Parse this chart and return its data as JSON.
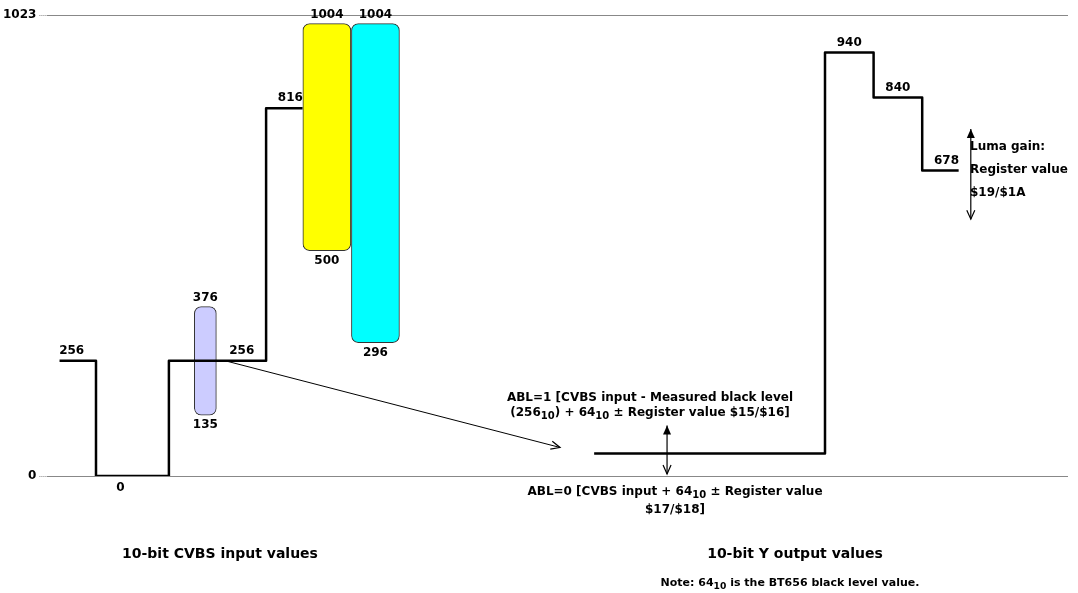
{
  "chart_data": {
    "type": "bar",
    "categories": [
      null,
      null,
      null,
      null,
      null,
      null,
      null,
      null,
      null,
      null,
      null,
      null,
      null,
      null,
      null,
      null,
      null,
      null,
      null,
      null,
      null,
      null,
      null,
      null,
      null,
      null,
      null,
      null,
      null,
      null,
      null,
      null,
      null,
      null,
      null,
      null,
      null,
      null,
      null,
      null,
      null,
      null
    ],
    "series": [
      {
        "type": "step",
        "color": "#000000",
        "values": [
          256,
          256,
          0,
          0,
          0,
          256,
          256,
          256,
          256,
          816,
          816,
          null,
          null,
          null,
          null,
          null,
          null,
          null,
          null,
          null,
          null,
          null,
          50,
          50,
          50,
          50,
          50,
          50,
          50,
          50,
          50,
          50,
          940,
          940,
          840,
          840,
          678,
          678,
          null,
          null,
          null,
          null
        ],
        "value_labels": [
          "256",
          null,
          "0",
          null,
          null,
          null,
          null,
          "256",
          null,
          "816",
          null,
          null,
          null,
          null,
          null,
          null,
          null,
          null,
          null,
          null,
          null,
          null,
          null,
          null,
          null,
          null,
          null,
          null,
          null,
          null,
          null,
          null,
          "940",
          null,
          "840",
          null,
          "678",
          null,
          null,
          null,
          null,
          null
        ]
      },
      {
        "type": "bar",
        "color": "#ccccff",
        "values": [
          null,
          null,
          null,
          null,
          null,
          null,
          241,
          null,
          null,
          null,
          null,
          null,
          null,
          null,
          null,
          null,
          null,
          null,
          null,
          null,
          null,
          null,
          null,
          null,
          null,
          null,
          null,
          null,
          null,
          null,
          null,
          null,
          null,
          null,
          null,
          null,
          null,
          null,
          null,
          null,
          null,
          null
        ],
        "base": [
          null,
          null,
          null,
          null,
          null,
          null,
          135,
          null,
          null,
          null,
          null,
          null,
          null,
          null,
          null,
          null,
          null,
          null,
          null,
          null,
          null,
          null,
          null,
          null,
          null,
          null,
          null,
          null,
          null,
          null,
          null,
          null,
          null,
          null,
          null,
          null,
          null,
          null,
          null,
          null,
          null,
          null
        ],
        "value_labels": [
          null,
          null,
          null,
          null,
          null,
          null,
          "376",
          null,
          null,
          null,
          null,
          null,
          null,
          null,
          null,
          null,
          null,
          null,
          null,
          null,
          null,
          null,
          null,
          null,
          null,
          null,
          null,
          null,
          null,
          null,
          null,
          null,
          null,
          null,
          null,
          null,
          null,
          null,
          null,
          null,
          null,
          null
        ]
      },
      {
        "type": "bar",
        "color": "#ffff00",
        "values": [
          null,
          null,
          null,
          null,
          null,
          null,
          null,
          null,
          null,
          null,
          null,
          504,
          null,
          null,
          null,
          null,
          null,
          null,
          null,
          null,
          null,
          null,
          null,
          null,
          null,
          null,
          null,
          null,
          null,
          null,
          null,
          null,
          null,
          null,
          null,
          null,
          null,
          null,
          null,
          null,
          null,
          null
        ],
        "base": [
          null,
          null,
          null,
          null,
          null,
          null,
          null,
          null,
          null,
          null,
          null,
          500,
          null,
          null,
          null,
          null,
          null,
          null,
          null,
          null,
          null,
          null,
          null,
          null,
          null,
          null,
          null,
          null,
          null,
          null,
          null,
          null,
          null,
          null,
          null,
          null,
          null,
          null,
          null,
          null,
          null,
          null
        ],
        "value_labels": [
          null,
          null,
          null,
          null,
          null,
          null,
          null,
          null,
          null,
          null,
          null,
          "1004",
          null,
          null,
          null,
          null,
          null,
          null,
          null,
          null,
          null,
          null,
          null,
          null,
          null,
          null,
          null,
          null,
          null,
          null,
          null,
          null,
          null,
          null,
          null,
          null,
          null,
          null,
          null,
          null,
          null,
          null
        ]
      },
      {
        "type": "bar",
        "color": "#00ffff",
        "values": [
          null,
          null,
          null,
          null,
          null,
          null,
          null,
          null,
          null,
          null,
          null,
          null,
          null,
          708,
          null,
          null,
          null,
          null,
          null,
          null,
          null,
          null,
          null,
          null,
          null,
          null,
          null,
          null,
          null,
          null,
          null,
          null,
          null,
          null,
          null,
          null,
          null,
          null,
          null,
          null,
          null,
          null
        ],
        "base": [
          null,
          null,
          null,
          null,
          null,
          null,
          null,
          null,
          null,
          null,
          null,
          null,
          null,
          296,
          null,
          null,
          null,
          null,
          null,
          null,
          null,
          null,
          null,
          null,
          null,
          null,
          null,
          null,
          null,
          null,
          null,
          null,
          null,
          null,
          null,
          null,
          null,
          null,
          null,
          null,
          null,
          null
        ],
        "value_labels": [
          null,
          null,
          null,
          null,
          null,
          null,
          null,
          null,
          null,
          null,
          null,
          null,
          null,
          "1004",
          null,
          null,
          null,
          null,
          null,
          null,
          null,
          null,
          null,
          null,
          null,
          null,
          null,
          null,
          null,
          null,
          null,
          null,
          null,
          null,
          null,
          null,
          null,
          null,
          null,
          null,
          null,
          null
        ]
      }
    ],
    "ylim": [
      0,
      1023
    ],
    "yticks": [
      0,
      1023
    ],
    "grid": "y",
    "tick_labels": "y",
    "marker": "none",
    "annotations": [
      {
        "text": "135",
        "y": 135
      },
      {
        "text": "500",
        "y": 500
      },
      {
        "text": "296",
        "y": 296
      },
      "ABL=1 [CVBS input - Measured black level (256$_{10}$) + 64$_{10}$ ± Register value $15/$16]",
      "ABL=0 [CVBS input + 64$_{10}$ ± Register value $17/$18]",
      "Luma gain: Register value $19/$1A",
      "10-bit CVBS input values",
      "10-bit Y output values",
      "Note: 64$_{10}$ is the BT656 black level value."
    ]
  }
}
